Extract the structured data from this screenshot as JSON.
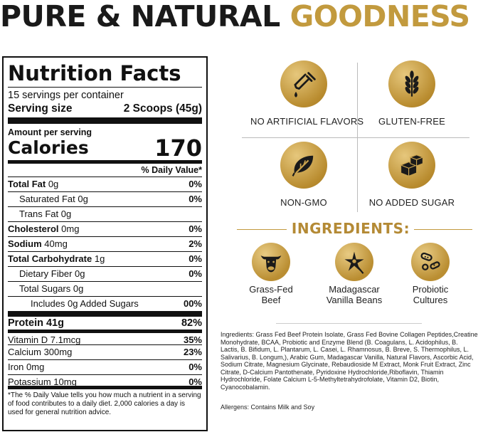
{
  "headline": {
    "dark": "PURE & NATURAL",
    "gold": "GOODNESS"
  },
  "nutrition": {
    "title": "Nutrition Facts",
    "servings": "15 servings per container",
    "serving_size_label": "Serving size",
    "serving_size_value": "2 Scoops (45g)",
    "amount_per_serving": "Amount per serving",
    "calories_label": "Calories",
    "calories_value": "170",
    "dv_header": "% Daily Value*",
    "rows": [
      {
        "name": "Total Fat",
        "amount": "0g",
        "dv": "0%"
      },
      {
        "name": "Saturated Fat 0g",
        "dv": "0%"
      },
      {
        "name": "Trans Fat 0g",
        "dv": ""
      },
      {
        "name": "Cholesterol",
        "amount": "0mg",
        "dv": "0%"
      },
      {
        "name": "Sodium",
        "amount": "40mg",
        "dv": "2%"
      },
      {
        "name": "Total Carbohydrate",
        "amount": "1g",
        "dv": "0%"
      },
      {
        "name": "Dietary Fiber 0g",
        "dv": "0%"
      },
      {
        "name": "Total Sugars 0g",
        "dv": ""
      },
      {
        "name": "Includes 0g Added Sugars",
        "dv": "00%"
      },
      {
        "name": "Protein 41g",
        "dv": "82%"
      },
      {
        "name": "Vitamin D 7.1mcg",
        "dv": "35%"
      },
      {
        "name": "Calcium 300mg",
        "dv": "23%"
      },
      {
        "name": "Iron 0mg",
        "dv": "0%"
      },
      {
        "name": "Potassium 10mg",
        "dv": "0%"
      }
    ],
    "footnote": "*The % Daily Value tells you how much a nutrient in a serving of food contributes to a daily diet. 2,000 calories a day is used for general nutrition advice."
  },
  "badges": [
    {
      "icon": "dropper-icon",
      "label": "NO ARTIFICIAL FLAVORS"
    },
    {
      "icon": "wheat-icon",
      "label": "GLUTEN-FREE"
    },
    {
      "icon": "leaves-icon",
      "label": "NON-GMO"
    },
    {
      "icon": "sugar-cubes-icon",
      "label": "NO ADDED SUGAR"
    }
  ],
  "ingredients_heading": "INGREDIENTS:",
  "key_ingredients": [
    {
      "icon": "cow-icon",
      "line1": "Grass-Fed",
      "line2": "Beef"
    },
    {
      "icon": "vanilla-flower-icon",
      "line1": "Madagascar",
      "line2": "Vanilla Beans"
    },
    {
      "icon": "bacteria-icon",
      "line1": "Probiotic",
      "line2": "Cultures"
    }
  ],
  "ingredients_text": "Ingredients: Grass Fed Beef Protein Isolate, Grass Fed Bovine Collagen Peptides,Creatine Monohydrate, BCAA, Probiotic and Enzyme Blend (B. Coagulans, L. Acidophilus, B. Lactis, B. Bifidum, L. Plantarum, L. Casei, L. Rhamnosus, B. Breve, S. Thermophilus, L. Salivarius, B. Longum,), Arabic Gum, Madagascar Vanilla, Natural Flavors, Ascorbic Acid, Sodium Citrate, Magnesium Glycinate, Rebaudioside M Extract, Monk Fruit Extract, Zinc Citrate, D-Calcium Pantothenate, Pyridoxine Hydrochloride,Riboflavin, Thiamin Hydrochloride, Folate Calcium L-5-Methyltetrahydrofolate, Vitamin D2, Biotin, Cyanocobalamin.",
  "allergens": "Allergens: Contains Milk and Soy",
  "colors": {
    "gold": "#c29a3e",
    "dark": "#1a1a1a"
  }
}
